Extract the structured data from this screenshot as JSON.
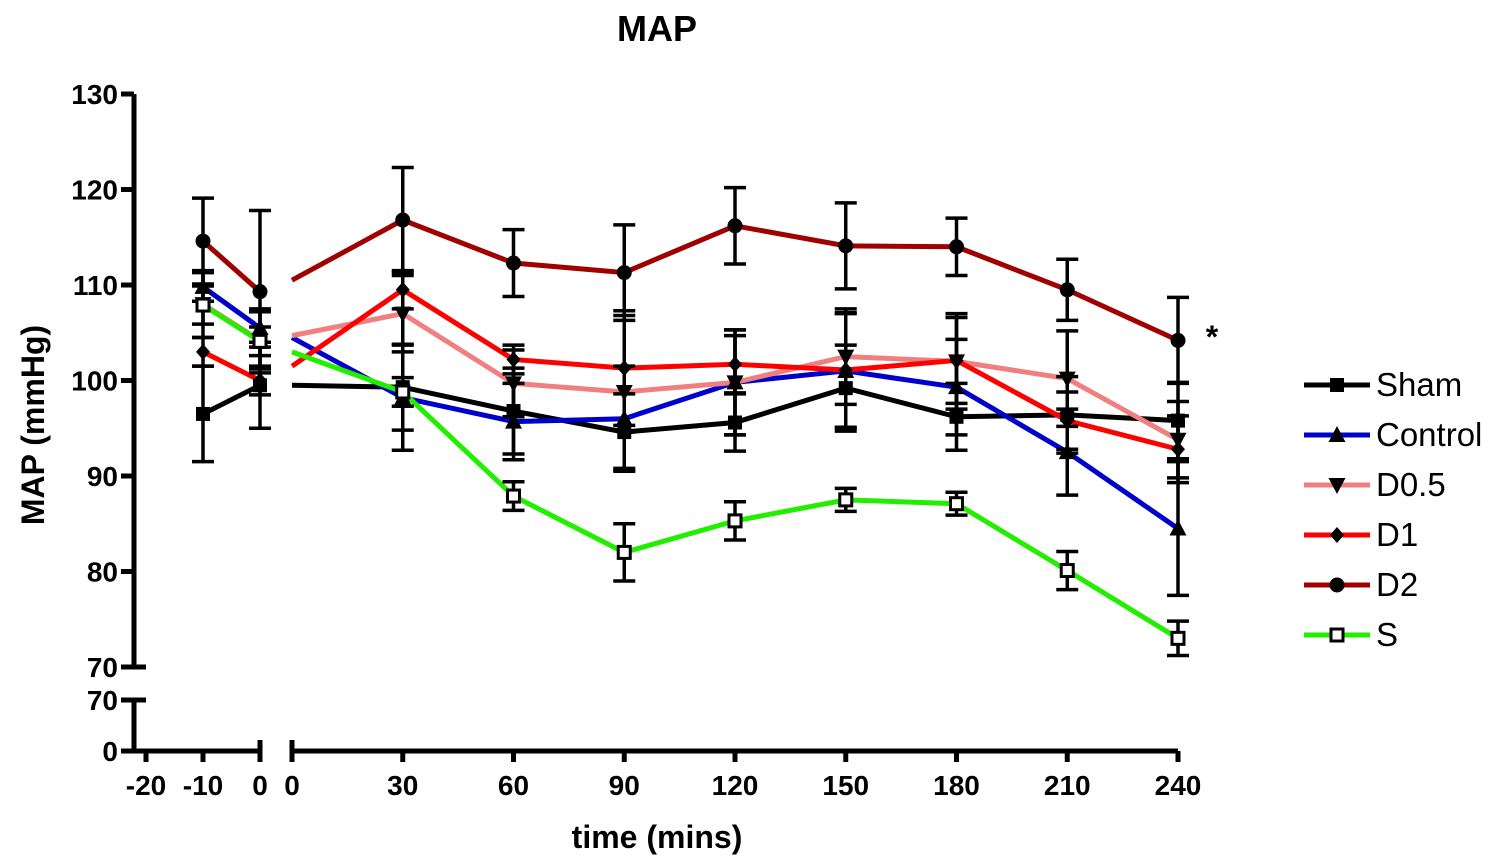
{
  "chart_data": {
    "type": "line",
    "title": "MAP",
    "xlabel": "time (mins)",
    "ylabel": "MAP (mmHg)",
    "annotation": "*",
    "y_upper": {
      "range": [
        70,
        130
      ],
      "ticks": [
        "70",
        "80",
        "90",
        "100",
        "110",
        "120",
        "130"
      ]
    },
    "y_lower": {
      "range": [
        0,
        70
      ],
      "ticks": [
        "0",
        "70"
      ]
    },
    "x_left": {
      "range": [
        -20,
        0
      ],
      "ticks": [
        "-20",
        "-10",
        "0"
      ]
    },
    "x_right": {
      "range": [
        0,
        240
      ],
      "ticks": [
        "0",
        "30",
        "60",
        "90",
        "120",
        "150",
        "180",
        "210",
        "240"
      ]
    },
    "x_pre": [
      -10,
      0
    ],
    "x_post": [
      0,
      30,
      60,
      90,
      120,
      150,
      180,
      210,
      240
    ],
    "series": [
      {
        "name": "Sham",
        "color": "#000000",
        "marker": "square",
        "pre": [
          96.5,
          99.5
        ],
        "pre_err": [
          5,
          4.5
        ],
        "post": [
          99.5,
          99.3,
          96.8,
          94.6,
          95.6,
          99.2,
          96.2,
          96.4,
          95.8
        ],
        "post_err": [
          0,
          4.5,
          4.5,
          4,
          3,
          4.5,
          3.5,
          4,
          4
        ]
      },
      {
        "name": "Control",
        "color": "#0000cc",
        "marker": "triangle-up",
        "pre": [
          109.8,
          105.5
        ],
        "pre_err": [
          1.5,
          2
        ],
        "post": [
          104.5,
          98.2,
          95.7,
          96.0,
          99.8,
          101.0,
          99.3,
          92.5,
          84.5
        ],
        "post_err": [
          0,
          5.5,
          4,
          5.5,
          5.5,
          6,
          5,
          4.5,
          7
        ]
      },
      {
        "name": "D0.5",
        "color": "#f08080",
        "marker": "triangle-down",
        "pre": [
          108.0,
          104.2
        ],
        "pre_err": [
          3.5,
          3
        ],
        "post": [
          104.7,
          107.0,
          99.7,
          98.8,
          99.8,
          102.5,
          102.0,
          100.2,
          93.8
        ],
        "post_err": [
          0,
          4,
          3.5,
          8,
          5.5,
          5,
          5,
          5,
          4
        ]
      },
      {
        "name": "D1",
        "color": "#ff0000",
        "marker": "diamond",
        "pre": [
          103.0,
          100.0
        ],
        "pre_err": [
          1.5,
          1.5
        ],
        "post": [
          101.5,
          109.5,
          102.2,
          101.3,
          101.7,
          101.1,
          102.1,
          95.8,
          92.8
        ],
        "post_err": [
          0,
          2,
          1.5,
          6,
          3,
          6,
          4.5,
          3,
          3.5
        ]
      },
      {
        "name": "D2",
        "color": "#a00000",
        "marker": "circle",
        "pre": [
          114.6,
          109.3
        ],
        "pre_err": [
          4.5,
          8.5
        ],
        "post": [
          110.5,
          116.8,
          112.3,
          111.3,
          116.2,
          114.1,
          114.0,
          109.5,
          104.2
        ],
        "post_err": [
          0,
          5.5,
          3.5,
          5,
          4,
          4.5,
          3,
          3.2,
          4.5
        ]
      },
      {
        "name": "S",
        "color": "#22ee00",
        "marker": "open-square",
        "pre": [
          107.9,
          104.1
        ],
        "pre_err": [
          2,
          1.5
        ],
        "post": [
          103.0,
          98.8,
          87.9,
          82.0,
          85.3,
          87.5,
          87.1,
          80.1,
          73.0
        ],
        "post_err": [
          0,
          1.5,
          1.5,
          3,
          2,
          1.2,
          1.2,
          2,
          1.8
        ]
      }
    ]
  }
}
